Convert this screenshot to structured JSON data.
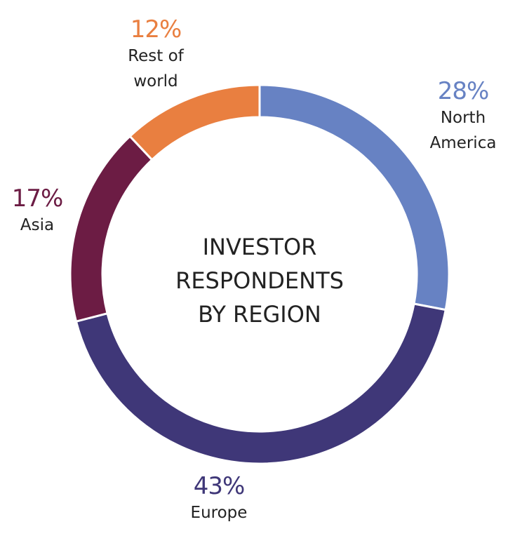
{
  "chart_data": {
    "type": "donut",
    "title": "INVESTOR RESPONDENTS BY REGION",
    "categories": [
      "North America",
      "Europe",
      "Asia",
      "Rest of world"
    ],
    "values": [
      28,
      43,
      17,
      12
    ],
    "value_labels": [
      "28%",
      "43%",
      "17%",
      "12%"
    ],
    "colors": [
      "#6782c3",
      "#3f3778",
      "#6c1c44",
      "#e97f40"
    ]
  }
}
